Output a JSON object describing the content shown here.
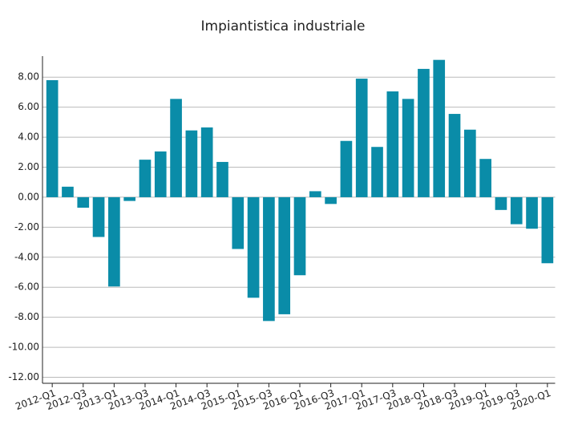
{
  "chart_data": {
    "type": "bar",
    "title": "Impiantistica industriale",
    "categories": [
      "2012-Q1",
      null,
      "2012-Q3",
      null,
      "2013-Q1",
      null,
      "2013-Q3",
      null,
      "2014-Q1",
      null,
      "2014-Q3",
      null,
      "2015-Q1",
      null,
      "2015-Q3",
      null,
      "2016-Q1",
      null,
      "2016-Q3",
      null,
      "2017-Q1",
      null,
      "2017-Q3",
      null,
      "2018-Q1",
      null,
      "2018-Q3",
      null,
      "2019-Q1",
      null,
      "2019-Q3",
      null,
      "2020-Q1"
    ],
    "values": [
      7.8,
      0.7,
      -0.7,
      -2.65,
      -5.95,
      -0.25,
      2.5,
      3.05,
      6.55,
      4.45,
      4.65,
      2.35,
      -3.45,
      -6.7,
      -8.25,
      -7.8,
      -5.2,
      0.4,
      -0.45,
      3.75,
      7.9,
      3.35,
      7.05,
      6.55,
      8.55,
      9.15,
      5.55,
      4.5,
      2.55,
      -0.85,
      -1.8,
      -2.1,
      -4.4
    ],
    "color": "#0a8ca8",
    "ylim": [
      -12.4,
      9.4
    ],
    "yticks": [
      {
        "value": -12,
        "label": "-12.00"
      },
      {
        "value": -10,
        "label": "-10.00"
      },
      {
        "value": -8,
        "label": "-8.00"
      },
      {
        "value": -6,
        "label": "-6.00"
      },
      {
        "value": -4,
        "label": "-4.00"
      },
      {
        "value": -2,
        "label": "-2.00"
      },
      {
        "value": 0,
        "label": "0.00"
      },
      {
        "value": 2,
        "label": "2.00"
      },
      {
        "value": 4,
        "label": "4.00"
      },
      {
        "value": 6,
        "label": "6.00"
      },
      {
        "value": 8,
        "label": "8.00"
      }
    ],
    "grid": true
  }
}
